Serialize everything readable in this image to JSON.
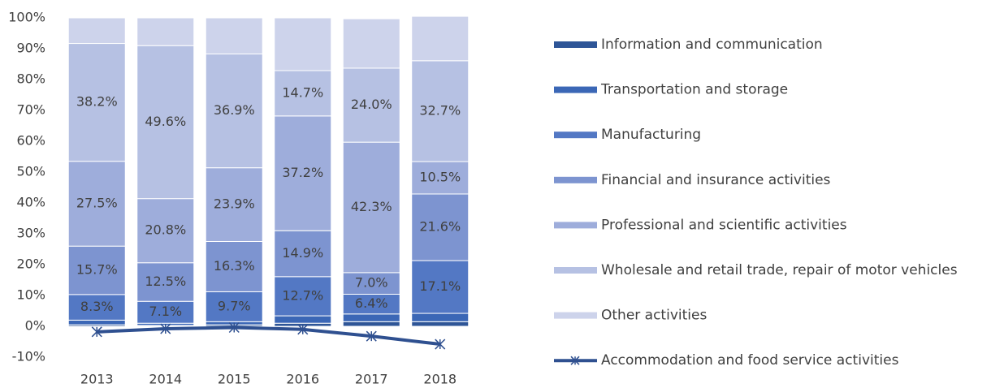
{
  "chart_data": {
    "type": "bar",
    "stacked": true,
    "categories": [
      "2013",
      "2014",
      "2015",
      "2016",
      "2017",
      "2018"
    ],
    "ylim": [
      -10,
      100
    ],
    "yticks": [
      {
        "value": -10,
        "label": "-10%"
      },
      {
        "value": 0,
        "label": "0%"
      },
      {
        "value": 10,
        "label": "10%"
      },
      {
        "value": 20,
        "label": "20%"
      },
      {
        "value": 30,
        "label": "30%"
      },
      {
        "value": 40,
        "label": "40%"
      },
      {
        "value": 50,
        "label": "50%"
      },
      {
        "value": 60,
        "label": "60%"
      },
      {
        "value": 70,
        "label": "70%"
      },
      {
        "value": 80,
        "label": "80%"
      },
      {
        "value": 90,
        "label": "90%"
      },
      {
        "value": 100,
        "label": "100%"
      }
    ],
    "legend": "right",
    "series": [
      {
        "name": "Information and communication",
        "color": "#2e5597",
        "values": [
          0.5,
          0.3,
          0.5,
          1.0,
          1.5,
          1.5
        ]
      },
      {
        "name": "Transportation and storage",
        "color": "#3b67b6",
        "values": [
          1.5,
          0.7,
          1.0,
          2.4,
          2.5,
          2.7
        ]
      },
      {
        "name": "Manufacturing",
        "color": "#5378c4",
        "values": [
          8.3,
          7.1,
          9.7,
          12.7,
          6.4,
          17.1
        ],
        "value_labels": [
          "8.3%",
          "7.1%",
          "9.7%",
          "12.7%",
          "6.4%",
          "17.1%"
        ]
      },
      {
        "name": "Financial and insurance activities",
        "color": "#7d94d0",
        "values": [
          15.7,
          12.5,
          16.3,
          14.9,
          7.0,
          21.6
        ],
        "value_labels": [
          "15.7%",
          "12.5%",
          "16.3%",
          "14.9%",
          "7.0%",
          "21.6%"
        ]
      },
      {
        "name": "Professional and scientific activities",
        "color": "#9eaddb",
        "values": [
          27.5,
          20.8,
          23.9,
          37.2,
          42.3,
          10.5
        ],
        "value_labels": [
          "27.5%",
          "20.8%",
          "23.9%",
          "37.2%",
          "42.3%",
          "10.5%"
        ]
      },
      {
        "name": "Wholesale and retail trade, repair of motor vehicles",
        "color": "#b6c1e3",
        "values": [
          38.2,
          49.6,
          36.9,
          14.7,
          24.0,
          32.7
        ],
        "value_labels": [
          "38.2%",
          "49.6%",
          "36.9%",
          "14.7%",
          "24.0%",
          "32.7%"
        ]
      },
      {
        "name": "Other activities",
        "color": "#cdd3eb",
        "values": [
          8.3,
          9.0,
          11.7,
          17.1,
          16.0,
          14.4
        ]
      },
      {
        "name": "Accommodation and food service activities",
        "color": "#2f5090",
        "type": "line",
        "values": [
          -1.8,
          -0.8,
          -0.4,
          -1.0,
          -3.2,
          -5.8
        ]
      }
    ]
  }
}
